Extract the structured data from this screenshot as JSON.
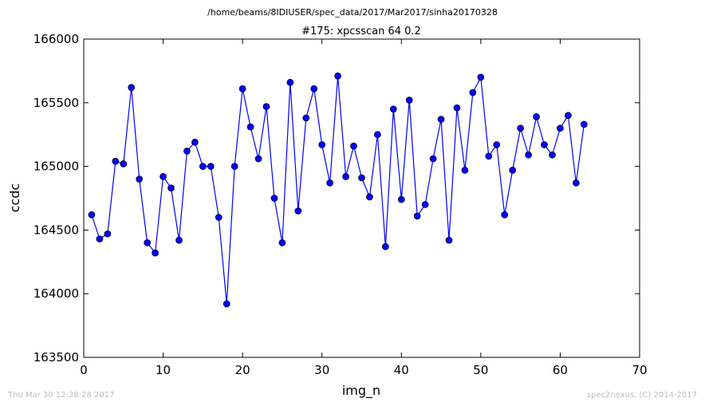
{
  "header": {
    "path": "/home/beams/8IDIUSER/spec_data/2017/Mar2017/sinha20170328",
    "scan_title": "#175: xpcsscan 64 0.2"
  },
  "footer": {
    "timestamp": "Thu Mar 30 12:38:28 2017",
    "credit": "spec2nexus, (C) 2014-2017"
  },
  "chart_data": {
    "type": "line",
    "title": "#175: xpcsscan 64 0.2",
    "xlabel": "img_n",
    "ylabel": "ccdc",
    "xlim": [
      0,
      70
    ],
    "ylim": [
      163500,
      166000
    ],
    "xticks": [
      0,
      10,
      20,
      30,
      40,
      50,
      60,
      70
    ],
    "yticks": [
      163500,
      164000,
      164500,
      165000,
      165500,
      166000
    ],
    "grid": false,
    "marker": "circle",
    "color": "#0000ff",
    "series": [
      {
        "x": [
          1,
          2,
          3,
          4,
          5,
          6,
          7,
          8,
          9,
          10,
          11,
          12,
          13,
          14,
          15,
          16,
          17,
          18,
          19,
          20,
          21,
          22,
          23,
          24,
          25,
          26,
          27,
          28,
          29,
          30,
          31,
          32,
          33,
          34,
          35,
          36,
          37,
          38,
          39,
          40,
          41,
          42,
          43,
          44,
          45,
          46,
          47,
          48,
          49,
          50,
          51,
          52,
          53,
          54,
          55,
          56,
          57,
          58,
          59,
          60,
          61,
          62,
          63
        ],
        "values": [
          164620,
          164430,
          164470,
          165040,
          165020,
          165620,
          164900,
          164400,
          164320,
          164920,
          164830,
          164420,
          165120,
          165190,
          165000,
          165000,
          164600,
          163920,
          165000,
          165610,
          165310,
          165060,
          165470,
          164750,
          164400,
          165660,
          164650,
          165380,
          165610,
          165170,
          164870,
          165710,
          164920,
          165160,
          164910,
          164760,
          165250,
          164370,
          165450,
          164740,
          165520,
          164610,
          164700,
          165060,
          165370,
          164420,
          165460,
          164970,
          165580,
          165700,
          165080,
          165170,
          164620,
          164970,
          165300,
          165090,
          165390,
          165170,
          165090,
          165300,
          165400,
          164870,
          165330
        ]
      }
    ]
  }
}
